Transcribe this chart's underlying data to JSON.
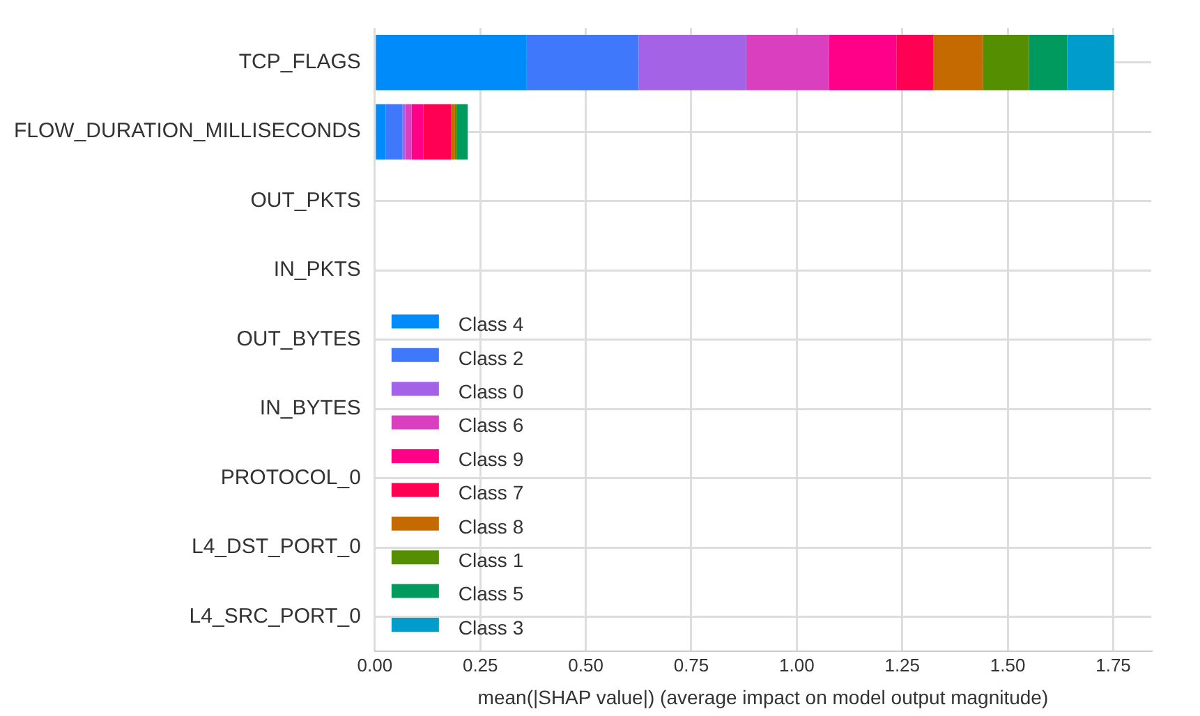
{
  "chart_data": {
    "type": "bar",
    "orientation": "horizontal",
    "stacked": true,
    "xlabel": "mean(|SHAP value|) (average impact on model output magnitude)",
    "categories": [
      "TCP_FLAGS",
      "FLOW_DURATION_MILLISECONDS",
      "OUT_PKTS",
      "IN_PKTS",
      "OUT_BYTES",
      "IN_BYTES",
      "PROTOCOL_0",
      "L4_DST_PORT_0",
      "L4_SRC_PORT_0"
    ],
    "series": [
      {
        "name": "Class 4",
        "color": "#008bfb",
        "values": [
          0.36,
          0.026,
          0,
          0,
          0,
          0,
          0,
          0,
          0
        ]
      },
      {
        "name": "Class 2",
        "color": "#4078fc",
        "values": [
          0.265,
          0.039,
          0,
          0,
          0,
          0,
          0,
          0,
          0
        ]
      },
      {
        "name": "Class 0",
        "color": "#a462e7",
        "values": [
          0.255,
          0.007,
          0,
          0,
          0,
          0,
          0,
          0,
          0
        ]
      },
      {
        "name": "Class 6",
        "color": "#da3fbf",
        "values": [
          0.196,
          0.015,
          0,
          0,
          0,
          0,
          0,
          0,
          0
        ]
      },
      {
        "name": "Class 9",
        "color": "#ff0088",
        "values": [
          0.16,
          0.028,
          0,
          0,
          0,
          0,
          0,
          0,
          0
        ]
      },
      {
        "name": "Class 7",
        "color": "#ff0052",
        "values": [
          0.088,
          0.066,
          0,
          0,
          0,
          0,
          0,
          0,
          0
        ]
      },
      {
        "name": "Class 8",
        "color": "#c46a00",
        "values": [
          0.117,
          0.009,
          0,
          0,
          0,
          0,
          0,
          0,
          0
        ]
      },
      {
        "name": "Class 1",
        "color": "#558f00",
        "values": [
          0.109,
          0.005,
          0,
          0,
          0,
          0,
          0,
          0,
          0
        ]
      },
      {
        "name": "Class 5",
        "color": "#009a5e",
        "values": [
          0.091,
          0.025,
          0,
          0,
          0,
          0,
          0,
          0,
          0
        ]
      },
      {
        "name": "Class 3",
        "color": "#009dcc",
        "values": [
          0.111,
          0,
          0,
          0,
          0,
          0,
          0,
          0,
          0
        ]
      }
    ],
    "xlim": [
      0,
      1.84
    ],
    "xticks": [
      {
        "value": 0,
        "label": "0.00"
      },
      {
        "value": 0.25,
        "label": "0.25"
      },
      {
        "value": 0.5,
        "label": "0.50"
      },
      {
        "value": 0.75,
        "label": "0.75"
      },
      {
        "value": 1,
        "label": "1.00"
      },
      {
        "value": 1.25,
        "label": "1.25"
      },
      {
        "value": 1.5,
        "label": "1.50"
      },
      {
        "value": 1.75,
        "label": "1.75"
      }
    ],
    "grid": true,
    "legend": "bottom left"
  }
}
